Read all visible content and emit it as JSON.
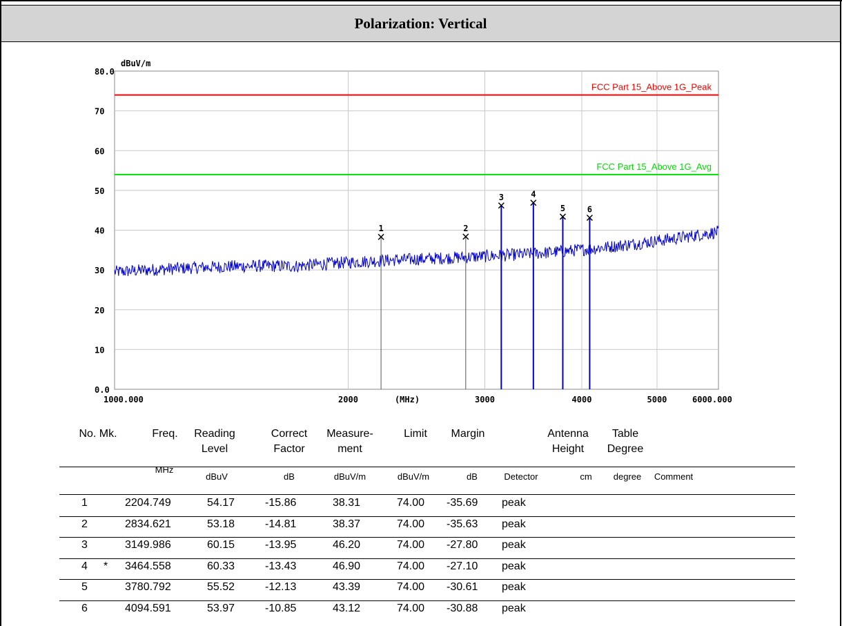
{
  "header": {
    "title": "Polarization: Vertical"
  },
  "chart_data": {
    "type": "line",
    "ylabel_unit": "dBuV/m",
    "xlabel_unit": "(MHz)",
    "x_scale": "log",
    "xlim": [
      1000,
      6000
    ],
    "ylim": [
      0,
      80
    ],
    "y_ticks": [
      "80.0",
      "70",
      "60",
      "50",
      "40",
      "30",
      "20",
      "10",
      "0.0"
    ],
    "x_ticks": [
      {
        "value": 1000,
        "label": "1000.000"
      },
      {
        "value": 2000,
        "label": "2000"
      },
      {
        "value": 3000,
        "label": "3000"
      },
      {
        "value": 4000,
        "label": "4000"
      },
      {
        "value": 5000,
        "label": "5000"
      },
      {
        "value": 6000,
        "label": "6000.000"
      }
    ],
    "grid": true,
    "limits": [
      {
        "name": "FCC Part 15_Above 1G_Peak",
        "value": 74.0,
        "color": "#ff0000"
      },
      {
        "name": "FCC Part 15_Above 1G_Avg",
        "value": 54.0,
        "color": "#00dd00"
      }
    ],
    "trace_color": "#0000cc",
    "markers": [
      {
        "label": "1",
        "freq": 2204.749,
        "level": 38.31
      },
      {
        "label": "2",
        "freq": 2834.621,
        "level": 38.37
      },
      {
        "label": "3",
        "freq": 3149.986,
        "level": 46.2
      },
      {
        "label": "4",
        "freq": 3464.558,
        "level": 46.9
      },
      {
        "label": "5",
        "freq": 3780.792,
        "level": 43.39
      },
      {
        "label": "6",
        "freq": 4094.591,
        "level": 43.12
      }
    ],
    "noise_floor": {
      "start": 29.5,
      "end": 41.0
    }
  },
  "table": {
    "headers": [
      "No. Mk.",
      "Freq.",
      "Reading\nLevel",
      "Correct\nFactor",
      "Measure-\nment",
      "Limit",
      "Margin",
      "",
      "Antenna\nHeight",
      "Table\nDegree"
    ],
    "units": [
      "MHz",
      "dBuV",
      "dB",
      "dBuV/m",
      "dBuV/m",
      "dB",
      "Detector",
      "cm",
      "degree",
      "Comment"
    ],
    "rows": [
      {
        "no": "1",
        "mk": "",
        "freq": "2204.749",
        "reading": "54.17",
        "factor": "-15.86",
        "measure": "38.31",
        "limit": "74.00",
        "margin": "-35.69",
        "detector": "peak"
      },
      {
        "no": "2",
        "mk": "",
        "freq": "2834.621",
        "reading": "53.18",
        "factor": "-14.81",
        "measure": "38.37",
        "limit": "74.00",
        "margin": "-35.63",
        "detector": "peak"
      },
      {
        "no": "3",
        "mk": "",
        "freq": "3149.986",
        "reading": "60.15",
        "factor": "-13.95",
        "measure": "46.20",
        "limit": "74.00",
        "margin": "-27.80",
        "detector": "peak"
      },
      {
        "no": "4",
        "mk": "*",
        "freq": "3464.558",
        "reading": "60.33",
        "factor": "-13.43",
        "measure": "46.90",
        "limit": "74.00",
        "margin": "-27.10",
        "detector": "peak"
      },
      {
        "no": "5",
        "mk": "",
        "freq": "3780.792",
        "reading": "55.52",
        "factor": "-12.13",
        "measure": "43.39",
        "limit": "74.00",
        "margin": "-30.61",
        "detector": "peak"
      },
      {
        "no": "6",
        "mk": "",
        "freq": "4094.591",
        "reading": "53.97",
        "factor": "-10.85",
        "measure": "43.12",
        "limit": "74.00",
        "margin": "-30.88",
        "detector": "peak"
      }
    ]
  }
}
